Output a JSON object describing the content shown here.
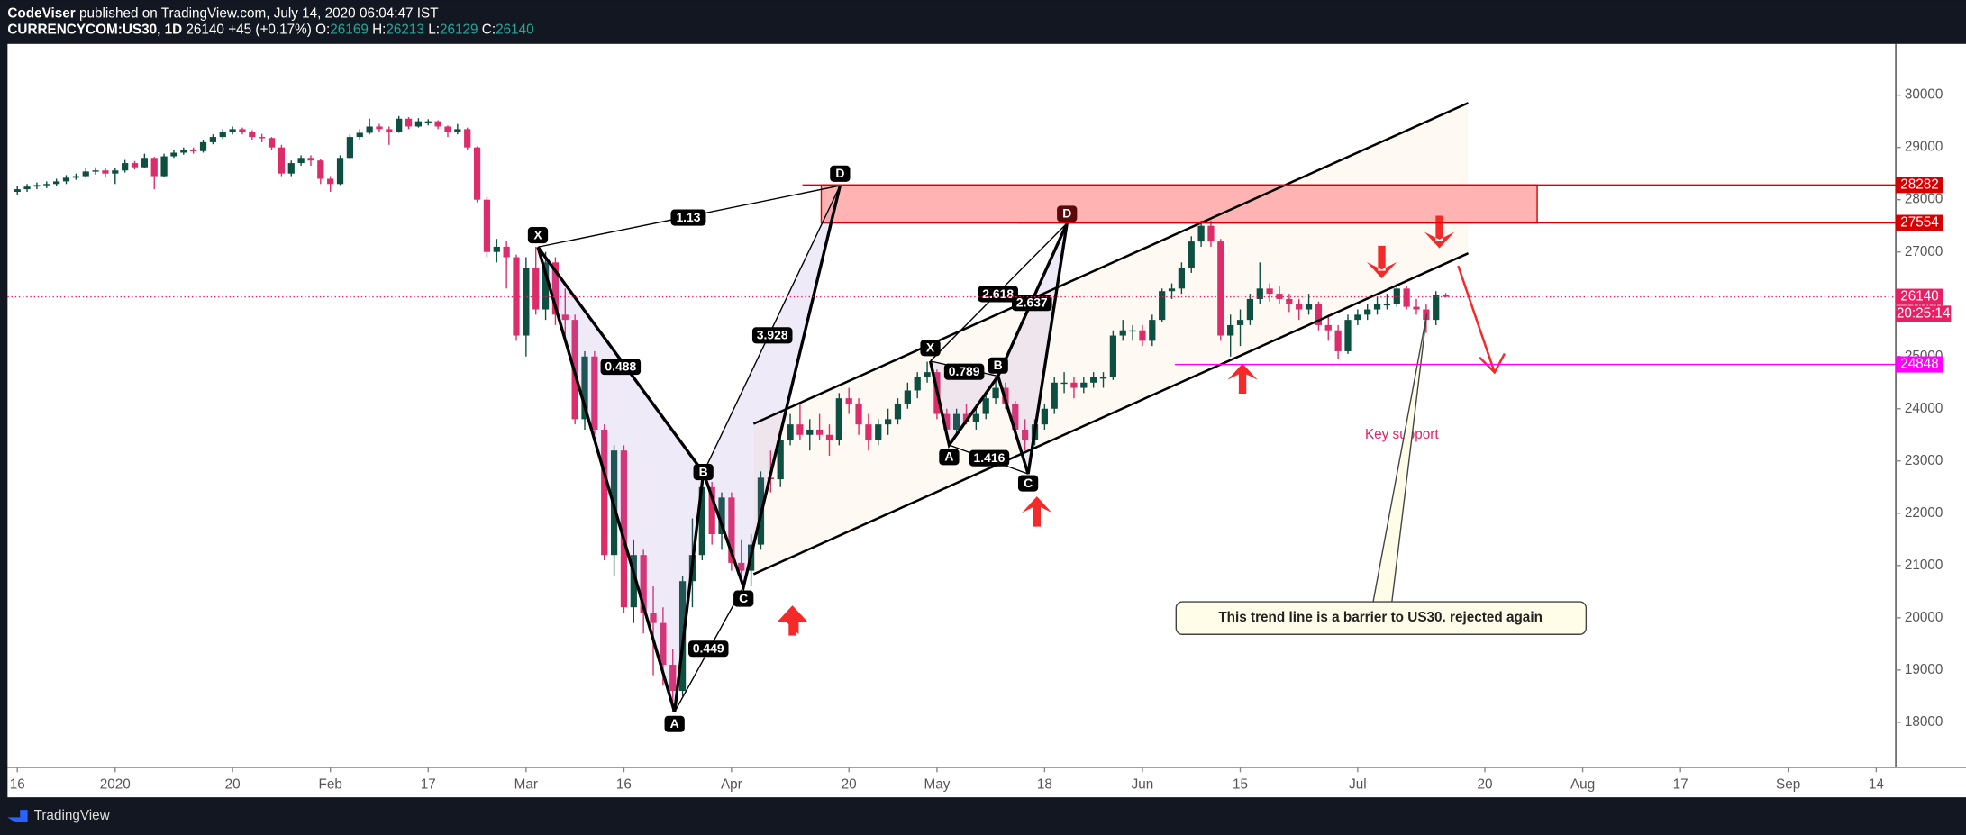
{
  "header": {
    "author": "CodeViser",
    "published": "published on TradingView.com, July 14, 2020 06:04:47 IST",
    "symbol": "CURRENCYCOM:US30, 1D",
    "change": "+45 (+0.17%)",
    "ohlc_labels": [
      "O:",
      "H:",
      "L:",
      "C:"
    ]
  },
  "chart_data": {
    "type": "candlestick",
    "up_color": "#0d4f40",
    "down_color": "#dc2d6a",
    "grid": false,
    "ylim": [
      17140,
      30980
    ],
    "yticks": [
      18000,
      19000,
      20000,
      21000,
      22000,
      23000,
      24000,
      25000,
      26000,
      27000,
      28000,
      29000,
      30000
    ],
    "xlim": [
      -1,
      192
    ],
    "xticks": [
      {
        "value": 0,
        "label": "16"
      },
      {
        "value": 10,
        "label": "2020"
      },
      {
        "value": 22,
        "label": "20"
      },
      {
        "value": 32,
        "label": "Feb"
      },
      {
        "value": 42,
        "label": "17"
      },
      {
        "value": 52,
        "label": "Mar"
      },
      {
        "value": 62,
        "label": "16"
      },
      {
        "value": 73,
        "label": "Apr"
      },
      {
        "value": 85,
        "label": "20"
      },
      {
        "value": 94,
        "label": "May"
      },
      {
        "value": 105,
        "label": "18"
      },
      {
        "value": 115,
        "label": "Jun"
      },
      {
        "value": 125,
        "label": "15"
      },
      {
        "value": 137,
        "label": "Jul"
      },
      {
        "value": 150,
        "label": "20"
      },
      {
        "value": 160,
        "label": "Aug"
      },
      {
        "value": 170,
        "label": "17"
      },
      {
        "value": 181,
        "label": "Sep"
      },
      {
        "value": 190,
        "label": "14"
      }
    ],
    "candles": [
      [
        28150,
        28260,
        28100,
        28200
      ],
      [
        28200,
        28300,
        28150,
        28250
      ],
      [
        28250,
        28330,
        28200,
        28280
      ],
      [
        28280,
        28350,
        28220,
        28300
      ],
      [
        28300,
        28400,
        28260,
        28350
      ],
      [
        28350,
        28470,
        28300,
        28420
      ],
      [
        28420,
        28500,
        28380,
        28450
      ],
      [
        28450,
        28600,
        28420,
        28540
      ],
      [
        28540,
        28620,
        28480,
        28560
      ],
      [
        28560,
        28600,
        28420,
        28500
      ],
      [
        28500,
        28600,
        28300,
        28560
      ],
      [
        28560,
        28760,
        28520,
        28700
      ],
      [
        28700,
        28740,
        28580,
        28620
      ],
      [
        28620,
        28880,
        28600,
        28800
      ],
      [
        28800,
        28820,
        28200,
        28450
      ],
      [
        28450,
        28880,
        28430,
        28830
      ],
      [
        28830,
        28950,
        28800,
        28900
      ],
      [
        28900,
        29000,
        28860,
        28950
      ],
      [
        28950,
        29000,
        28880,
        28930
      ],
      [
        28930,
        29150,
        28900,
        29100
      ],
      [
        29100,
        29250,
        29060,
        29200
      ],
      [
        29200,
        29350,
        29160,
        29300
      ],
      [
        29300,
        29400,
        29250,
        29350
      ],
      [
        29350,
        29380,
        29250,
        29300
      ],
      [
        29300,
        29330,
        29150,
        29200
      ],
      [
        29200,
        29260,
        29100,
        29180
      ],
      [
        29180,
        29200,
        28950,
        29000
      ],
      [
        29000,
        29050,
        28450,
        28500
      ],
      [
        28500,
        28750,
        28450,
        28700
      ],
      [
        28700,
        28850,
        28650,
        28800
      ],
      [
        28800,
        28850,
        28650,
        28750
      ],
      [
        28750,
        28780,
        28300,
        28400
      ],
      [
        28400,
        28450,
        28150,
        28300
      ],
      [
        28300,
        28850,
        28280,
        28800
      ],
      [
        28800,
        29250,
        28780,
        29200
      ],
      [
        29200,
        29350,
        29150,
        29280
      ],
      [
        29280,
        29550,
        29250,
        29400
      ],
      [
        29400,
        29450,
        29300,
        29350
      ],
      [
        29350,
        29400,
        29050,
        29300
      ],
      [
        29300,
        29600,
        29280,
        29550
      ],
      [
        29550,
        29580,
        29350,
        29400
      ],
      [
        29400,
        29560,
        29380,
        29500
      ],
      [
        29500,
        29540,
        29420,
        29500
      ],
      [
        29500,
        29520,
        29350,
        29400
      ],
      [
        29400,
        29420,
        29200,
        29300
      ],
      [
        29300,
        29450,
        29250,
        29350
      ],
      [
        29350,
        29380,
        28950,
        29000
      ],
      [
        29000,
        29020,
        27950,
        28000
      ],
      [
        28000,
        28050,
        26900,
        27000
      ],
      [
        27000,
        27250,
        26800,
        27100
      ],
      [
        27100,
        27200,
        26300,
        26900
      ],
      [
        26900,
        26950,
        25300,
        25400
      ],
      [
        25400,
        26900,
        25000,
        26700
      ],
      [
        26700,
        27100,
        25800,
        25900
      ],
      [
        25900,
        27000,
        25700,
        26800
      ],
      [
        26800,
        26900,
        25600,
        25800
      ],
      [
        25800,
        26300,
        25300,
        25700
      ],
      [
        25700,
        25800,
        23700,
        23800
      ],
      [
        23800,
        25100,
        23600,
        25000
      ],
      [
        25000,
        25100,
        23500,
        23600
      ],
      [
        23600,
        23700,
        21100,
        21200
      ],
      [
        21200,
        23300,
        20800,
        23200
      ],
      [
        23200,
        23300,
        20100,
        20200
      ],
      [
        20200,
        21500,
        19900,
        21200
      ],
      [
        21200,
        21300,
        19700,
        20100
      ],
      [
        20100,
        20600,
        18900,
        19900
      ],
      [
        19900,
        20200,
        18700,
        19100
      ],
      [
        19100,
        19400,
        18200,
        18600
      ],
      [
        18600,
        20800,
        18500,
        20700
      ],
      [
        20700,
        21900,
        20200,
        21200
      ],
      [
        21200,
        22700,
        21100,
        22500
      ],
      [
        22500,
        22600,
        21400,
        21600
      ],
      [
        21600,
        22400,
        21300,
        22300
      ],
      [
        22300,
        22400,
        20900,
        21050
      ],
      [
        21050,
        21500,
        20700,
        20900
      ],
      [
        20900,
        21600,
        20600,
        21400
      ],
      [
        21400,
        22800,
        21300,
        22680
      ],
      [
        22680,
        23200,
        22400,
        22650
      ],
      [
        22650,
        23600,
        22500,
        23400
      ],
      [
        23400,
        23900,
        23300,
        23700
      ],
      [
        23700,
        24100,
        23400,
        23500
      ],
      [
        23500,
        23800,
        23200,
        23600
      ],
      [
        23600,
        23900,
        23400,
        23500
      ],
      [
        23500,
        23700,
        23100,
        23400
      ],
      [
        23400,
        24300,
        23300,
        24200
      ],
      [
        24200,
        24400,
        23900,
        24100
      ],
      [
        24100,
        24200,
        23500,
        23700
      ],
      [
        23700,
        23900,
        23200,
        23400
      ],
      [
        23400,
        23800,
        23300,
        23700
      ],
      [
        23700,
        24000,
        23500,
        23800
      ],
      [
        23800,
        24200,
        23700,
        24100
      ],
      [
        24100,
        24500,
        24000,
        24350
      ],
      [
        24350,
        24700,
        24200,
        24600
      ],
      [
        24600,
        24900,
        24500,
        24700
      ],
      [
        24700,
        24750,
        23800,
        23900
      ],
      [
        23900,
        24000,
        23500,
        23600
      ],
      [
        23600,
        24000,
        23500,
        23900
      ],
      [
        23900,
        24100,
        23700,
        23750
      ],
      [
        23750,
        24000,
        23600,
        23900
      ],
      [
        23900,
        24300,
        23800,
        24200
      ],
      [
        24200,
        24600,
        24100,
        24400
      ],
      [
        24400,
        24500,
        24000,
        24100
      ],
      [
        24100,
        24150,
        23500,
        23600
      ],
      [
        23600,
        23800,
        23200,
        23400
      ],
      [
        23400,
        23800,
        23300,
        23700
      ],
      [
        23700,
        24100,
        23600,
        24000
      ],
      [
        24000,
        24600,
        23900,
        24500
      ],
      [
        24500,
        24700,
        24300,
        24500
      ],
      [
        24500,
        24600,
        24200,
        24400
      ],
      [
        24400,
        24600,
        24300,
        24500
      ],
      [
        24500,
        24700,
        24400,
        24600
      ],
      [
        24600,
        24700,
        24400,
        24600
      ],
      [
        24600,
        25500,
        24550,
        25400
      ],
      [
        25400,
        25700,
        25300,
        25500
      ],
      [
        25500,
        25600,
        25300,
        25500
      ],
      [
        25500,
        25600,
        25200,
        25300
      ],
      [
        25300,
        25800,
        25200,
        25700
      ],
      [
        25700,
        26300,
        25650,
        26250
      ],
      [
        26250,
        26400,
        26100,
        26300
      ],
      [
        26300,
        26800,
        26200,
        26700
      ],
      [
        26700,
        27300,
        26600,
        27200
      ],
      [
        27200,
        27600,
        27100,
        27500
      ],
      [
        27500,
        27600,
        27100,
        27200
      ],
      [
        27200,
        27250,
        25300,
        25400
      ],
      [
        25400,
        25800,
        25000,
        25600
      ],
      [
        25600,
        25900,
        25200,
        25700
      ],
      [
        25700,
        26200,
        25600,
        26100
      ],
      [
        26100,
        26800,
        26000,
        26300
      ],
      [
        26300,
        26400,
        26050,
        26200
      ],
      [
        26200,
        26350,
        26000,
        26100
      ],
      [
        26100,
        26200,
        25850,
        26000
      ],
      [
        26000,
        26100,
        25700,
        25900
      ],
      [
        25900,
        26200,
        25800,
        26000
      ],
      [
        26000,
        26050,
        25500,
        25600
      ],
      [
        25600,
        25800,
        25300,
        25500
      ],
      [
        25500,
        25600,
        24950,
        25100
      ],
      [
        25100,
        25800,
        25050,
        25700
      ],
      [
        25700,
        25900,
        25600,
        25800
      ],
      [
        25800,
        26000,
        25700,
        25900
      ],
      [
        25900,
        26150,
        25800,
        26000
      ],
      [
        26000,
        26200,
        25900,
        26000
      ],
      [
        26000,
        26400,
        25950,
        26300
      ],
      [
        26300,
        26350,
        25900,
        25950
      ],
      [
        25950,
        26100,
        25800,
        25900
      ],
      [
        25900,
        26000,
        25450,
        25700
      ],
      [
        25700,
        26250,
        25600,
        26170
      ],
      [
        26169,
        26213,
        26129,
        26140
      ]
    ],
    "price_lines": [
      {
        "value": 28282,
        "color": "#d50000",
        "style": "solid"
      },
      {
        "value": 27554,
        "color": "#d50000",
        "style": "solid"
      },
      {
        "value": 26140,
        "color": "#e91e63",
        "style": "dotted"
      },
      {
        "value": 24848,
        "color": "#ff00ff",
        "style": "solid"
      }
    ],
    "countdown": "20:25:14",
    "annotations": {
      "pattern1": {
        "points": [
          "X",
          "A",
          "B",
          "C",
          "D"
        ],
        "ratios": [
          "1.13",
          "0.488",
          "0.449",
          "3.928"
        ]
      },
      "pattern2": {
        "points": [
          "X",
          "A",
          "B",
          "C",
          "D"
        ],
        "ratios": [
          "0.789",
          "1.416",
          "2.618",
          "2.637"
        ]
      },
      "key_support": "Key support",
      "callout": "This trend line is a barrier to US30. rejected again"
    }
  },
  "footer": {
    "brand": "TradingView"
  }
}
